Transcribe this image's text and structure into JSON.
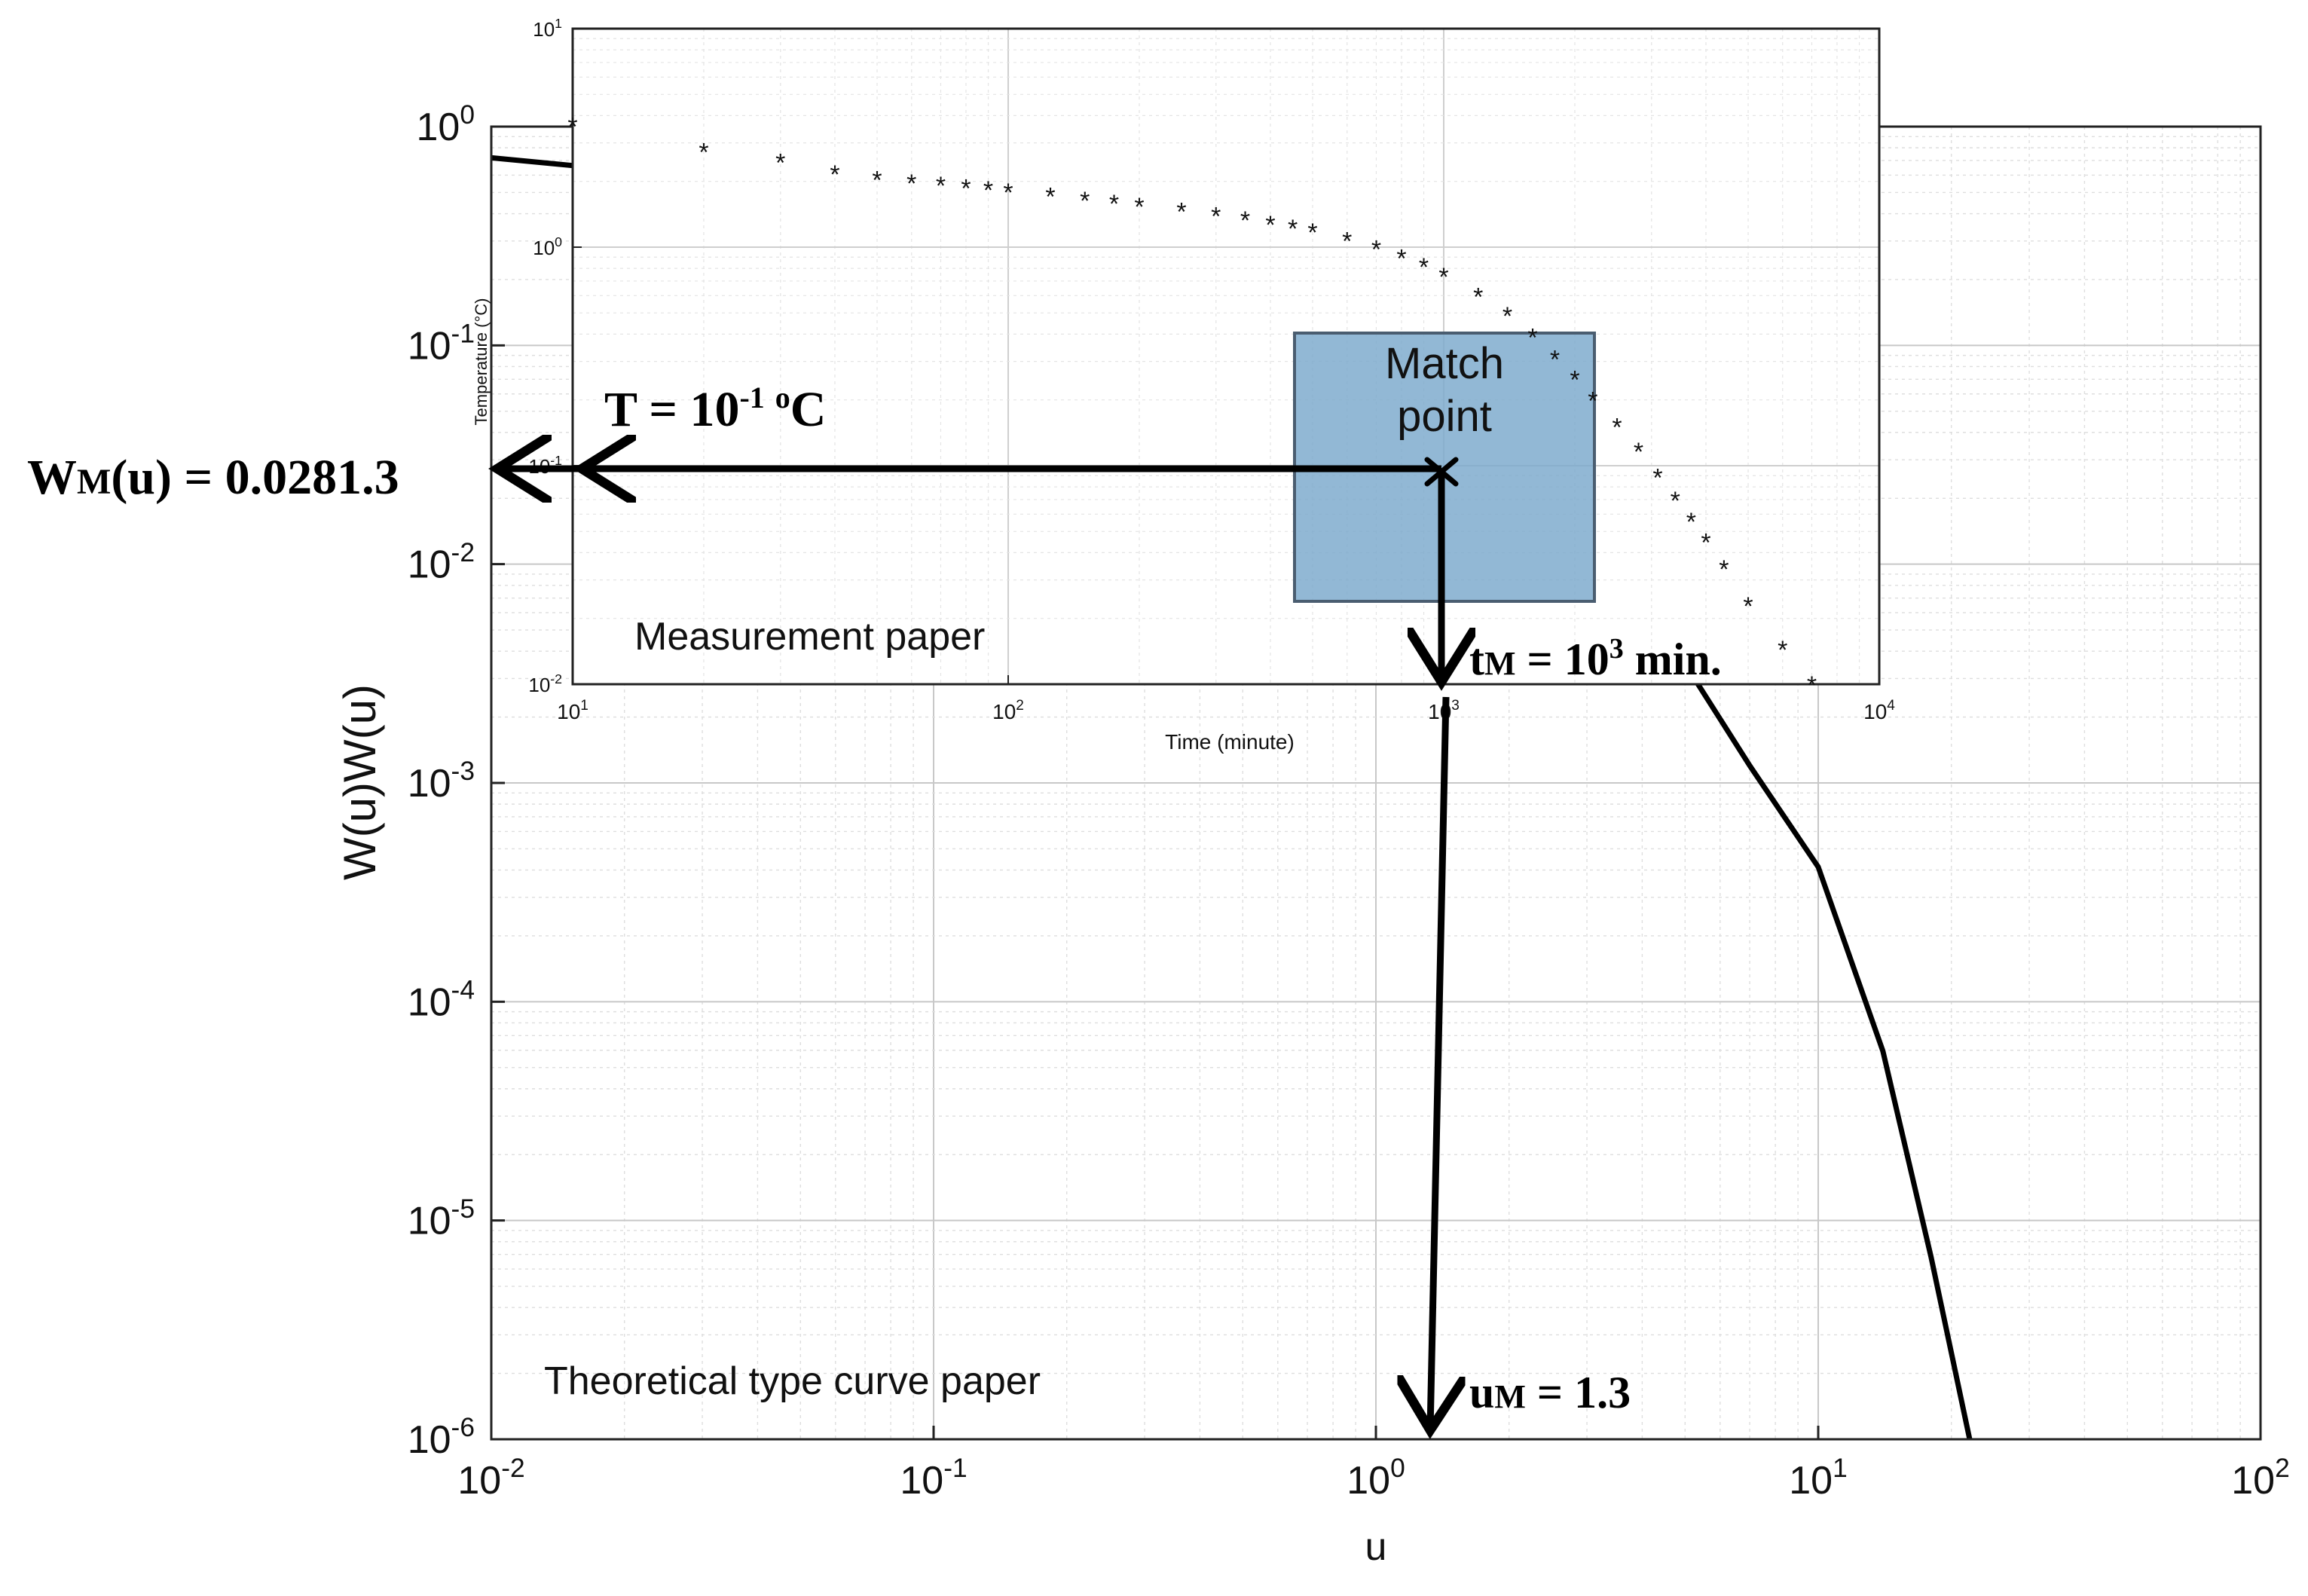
{
  "chart_data": [
    {
      "name": "theoretical",
      "type": "line",
      "xscale": "log",
      "yscale": "log",
      "xlim": [
        0.01,
        100
      ],
      "ylim": [
        1e-06,
        1
      ],
      "xlabel": "u",
      "ylabel": "W(u)W(u)",
      "xticks": [
        {
          "base": "10",
          "exp": "-2"
        },
        {
          "base": "10",
          "exp": "-1"
        },
        {
          "base": "10",
          "exp": "0"
        },
        {
          "base": "10",
          "exp": "1"
        },
        {
          "base": "10",
          "exp": "2"
        }
      ],
      "yticks": [
        {
          "base": "10",
          "exp": "0"
        },
        {
          "base": "10",
          "exp": "-1"
        },
        {
          "base": "10",
          "exp": "-2"
        },
        {
          "base": "10",
          "exp": "-3"
        },
        {
          "base": "10",
          "exp": "-4"
        },
        {
          "base": "10",
          "exp": "-5"
        },
        {
          "base": "10",
          "exp": "-6"
        }
      ],
      "grid": true,
      "label": "Theoretical type curve paper",
      "series": [
        {
          "color": "#000000",
          "x": [
            0.01,
            0.02,
            0.05,
            0.1,
            0.2,
            0.5,
            1.0,
            2.0,
            3.0,
            5.0,
            7.0,
            10.0,
            14.0,
            18.0,
            22.0
          ],
          "y": [
            0.72,
            0.63,
            0.54,
            0.47,
            0.38,
            0.25,
            0.1,
            0.04,
            0.014,
            0.0035,
            0.0012,
            0.000413,
            5.95e-05,
            6.8e-06,
            1e-06
          ]
        }
      ]
    },
    {
      "name": "measurement",
      "type": "scatter",
      "xscale": "log",
      "yscale": "log",
      "xlim": [
        10,
        10000
      ],
      "ylim": [
        0.01,
        10
      ],
      "xlabel": "Time (minute)",
      "ylabel": "Temperature (°C)",
      "xticks": [
        {
          "base": "10",
          "exp": "1"
        },
        {
          "base": "10",
          "exp": "2"
        },
        {
          "base": "10",
          "exp": "3"
        },
        {
          "base": "10",
          "exp": "4"
        }
      ],
      "yticks": [
        {
          "base": "10",
          "exp": "1"
        },
        {
          "base": "10",
          "exp": "0"
        },
        {
          "base": "10",
          "exp": "-1"
        },
        {
          "base": "10",
          "exp": "-2"
        }
      ],
      "grid": true,
      "label": "Measurement paper",
      "series": [
        {
          "marker": "*",
          "color": "#2e7bc4",
          "points": [
            [
              10,
              3.6
            ],
            [
              20,
              2.75
            ],
            [
              30,
              2.46
            ],
            [
              40,
              2.18
            ],
            [
              50,
              2.05
            ],
            [
              60,
              1.98
            ],
            [
              70,
              1.93
            ],
            [
              80,
              1.88
            ],
            [
              90,
              1.84
            ],
            [
              100,
              1.8
            ],
            [
              125,
              1.72
            ],
            [
              150,
              1.65
            ],
            [
              175,
              1.6
            ],
            [
              200,
              1.55
            ],
            [
              250,
              1.47
            ],
            [
              300,
              1.4
            ],
            [
              350,
              1.34
            ],
            [
              400,
              1.28
            ],
            [
              450,
              1.23
            ],
            [
              500,
              1.18
            ],
            [
              600,
              1.08
            ],
            [
              700,
              0.99
            ],
            [
              800,
              0.9
            ],
            [
              900,
              0.82
            ],
            [
              1000,
              0.74
            ],
            [
              1200,
              0.6
            ],
            [
              1400,
              0.49
            ],
            [
              1600,
              0.39
            ],
            [
              1800,
              0.31
            ],
            [
              2000,
              0.25
            ],
            [
              2200,
              0.2
            ],
            [
              2500,
              0.152
            ],
            [
              2800,
              0.117
            ],
            [
              3100,
              0.089
            ],
            [
              3400,
              0.07
            ],
            [
              3700,
              0.056
            ],
            [
              4000,
              0.045
            ],
            [
              4400,
              0.034
            ],
            [
              5000,
              0.023
            ],
            [
              6000,
              0.0145
            ],
            [
              7000,
              0.01
            ]
          ]
        }
      ]
    }
  ],
  "annotations": {
    "match_point_line1": "Match",
    "match_point_line2": "point",
    "T_label": {
      "main": "T = 10",
      "sup": "-1",
      "sup2": "o",
      "tail": "C"
    },
    "W_label": {
      "main": "W",
      "sub": "M",
      "tail": "(u) = 0.0281.3"
    },
    "t_label": {
      "main": "t",
      "sub": "M",
      "mid": " = 10",
      "sup": "3",
      "tail": " min."
    },
    "u_label": {
      "main": "u",
      "sub": "M",
      "tail": " = 1.3"
    }
  },
  "colors": {
    "box_fill": "#7aa8cc",
    "box_stroke": "#4a5d70",
    "scatter": "#2e7bc4",
    "curve": "#000000"
  }
}
